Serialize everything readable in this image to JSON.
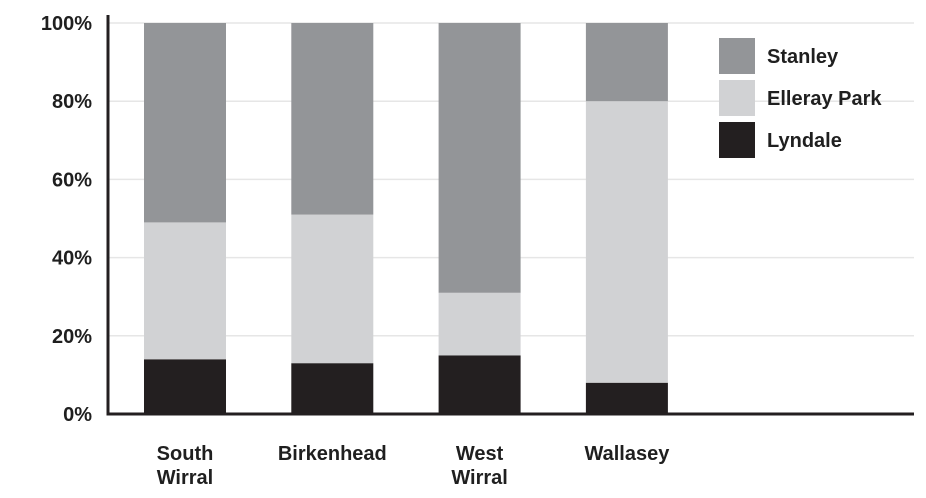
{
  "chart_data": {
    "type": "bar",
    "stacked": true,
    "percent": true,
    "categories": [
      [
        "South",
        "Wirral"
      ],
      [
        "Birkenhead"
      ],
      [
        "West",
        "Wirral"
      ],
      [
        "Wallasey"
      ]
    ],
    "series": [
      {
        "name": "Lyndale",
        "color": "#231f20",
        "values": [
          14,
          13,
          15,
          8
        ]
      },
      {
        "name": "Elleray Park",
        "color": "#d1d2d4",
        "values": [
          35,
          38,
          16,
          72
        ]
      },
      {
        "name": "Stanley",
        "color": "#939598",
        "values": [
          51,
          49,
          69,
          20
        ]
      }
    ],
    "ylim": [
      0,
      100
    ],
    "yticks": [
      "0%",
      "20%",
      "40%",
      "60%",
      "80%",
      "100%"
    ],
    "ytick_values": [
      0,
      20,
      40,
      60,
      80,
      100
    ],
    "legend": {
      "position": "top-right",
      "order": [
        "Stanley",
        "Elleray Park",
        "Lyndale"
      ]
    },
    "grid": true,
    "title": "",
    "xlabel": "",
    "ylabel": ""
  }
}
